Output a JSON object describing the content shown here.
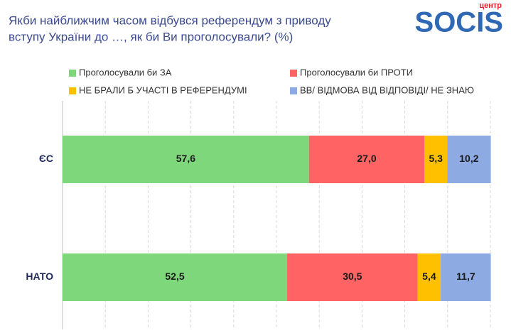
{
  "logo": {
    "small": "центр",
    "name": "SOCIS"
  },
  "chart_data": {
    "type": "stacked-bar-horizontal",
    "title": [
      "Якби найближчим часом відбувся референдум з приводу",
      "вступу України до …, як би Ви проголосували? (%)"
    ],
    "categories": [
      "ЄС",
      "НАТО"
    ],
    "series": [
      {
        "name": "Проголосували би ЗА",
        "color": "#7ed87b",
        "values": [
          57.6,
          52.5
        ],
        "value_labels": [
          "57,6",
          "52,5"
        ]
      },
      {
        "name": "Проголосували би ПРОТИ",
        "color": "#ff6363",
        "values": [
          27.0,
          30.5
        ],
        "value_labels": [
          "27,0",
          "30,5"
        ]
      },
      {
        "name": "НЕ БРАЛИ Б УЧАСТІ В РЕФЕРЕНДУМІ",
        "color": "#ffc000",
        "values": [
          5.3,
          5.4
        ],
        "value_labels": [
          "5,3",
          "5,4"
        ]
      },
      {
        "name": "ВВ/ ВІДМОВА ВІД ВІДПОВІДІ/ НЕ ЗНАЮ",
        "color": "#8eaae2",
        "values": [
          10.2,
          11.7
        ],
        "value_labels": [
          "10,2",
          "11,7"
        ]
      }
    ],
    "xlim": [
      0,
      100
    ],
    "xticks": [
      0,
      10,
      20,
      30,
      40,
      50,
      60,
      70,
      80,
      90,
      100
    ],
    "grid": true
  }
}
